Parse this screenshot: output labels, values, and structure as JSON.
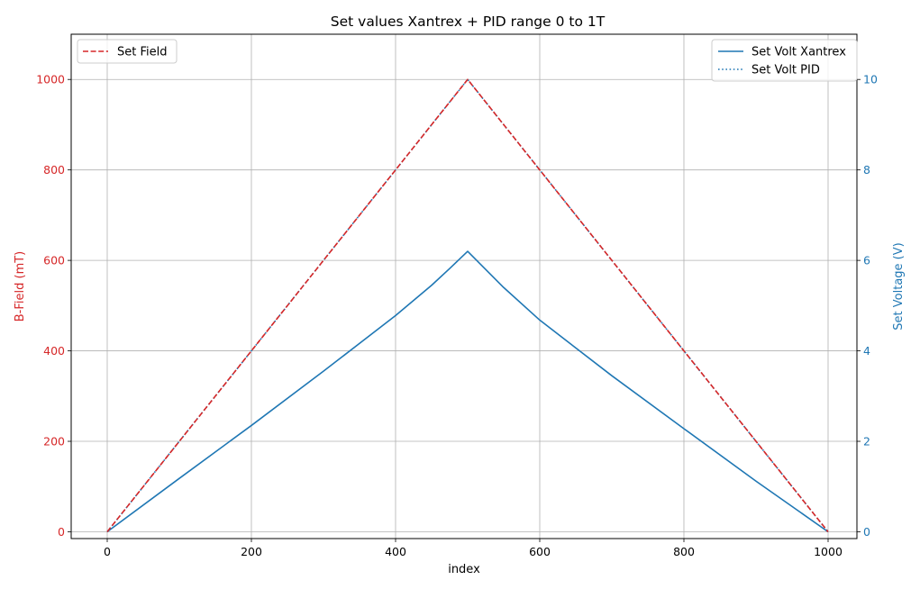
{
  "chart_data": {
    "type": "line",
    "title": "Set values Xantrex + PID range 0 to 1T",
    "xlabel": "index",
    "ylabel_left": "B-Field (mT)",
    "ylabel_right": "Set Voltage (V)",
    "xlim": [
      -50,
      1040
    ],
    "ylim_left": [
      -15,
      1100
    ],
    "ylim_right": [
      -0.15,
      11.0
    ],
    "xticks": [
      0,
      200,
      400,
      600,
      800,
      1000
    ],
    "yticks_left": [
      0,
      200,
      400,
      600,
      800,
      1000
    ],
    "yticks_right": [
      0,
      2,
      4,
      6,
      8,
      10
    ],
    "grid": true,
    "colors": {
      "left_axis": "#d62728",
      "right_axis": "#1f77b4",
      "set_field": "#d62728",
      "set_volt": "#1f77b4"
    },
    "legend_left": {
      "placement": "upper-left",
      "entries": [
        {
          "label": "Set Field",
          "style": "dashed",
          "color": "#d62728"
        }
      ]
    },
    "legend_right": {
      "placement": "upper-right",
      "entries": [
        {
          "label": "Set Volt Xantrex",
          "style": "solid",
          "color": "#1f77b4"
        },
        {
          "label": "Set Volt PID",
          "style": "dotted",
          "color": "#1f77b4"
        }
      ]
    },
    "series": [
      {
        "name": "Set Field",
        "axis": "left",
        "style": "dashed",
        "x": [
          0,
          500,
          1000
        ],
        "y": [
          0,
          1000,
          0
        ]
      },
      {
        "name": "Set Volt Xantrex",
        "axis": "right",
        "style": "solid",
        "x": [
          0,
          100,
          200,
          300,
          400,
          450,
          475,
          500,
          550,
          600,
          700,
          800,
          900,
          1000
        ],
        "y": [
          0,
          1.18,
          2.35,
          3.55,
          4.78,
          5.45,
          5.82,
          6.2,
          5.4,
          4.68,
          3.45,
          2.28,
          1.12,
          0
        ]
      },
      {
        "name": "Set Volt PID",
        "axis": "right",
        "style": "dotted",
        "x": [
          0,
          500,
          1000
        ],
        "y": [
          0,
          10.0,
          0
        ]
      }
    ]
  }
}
